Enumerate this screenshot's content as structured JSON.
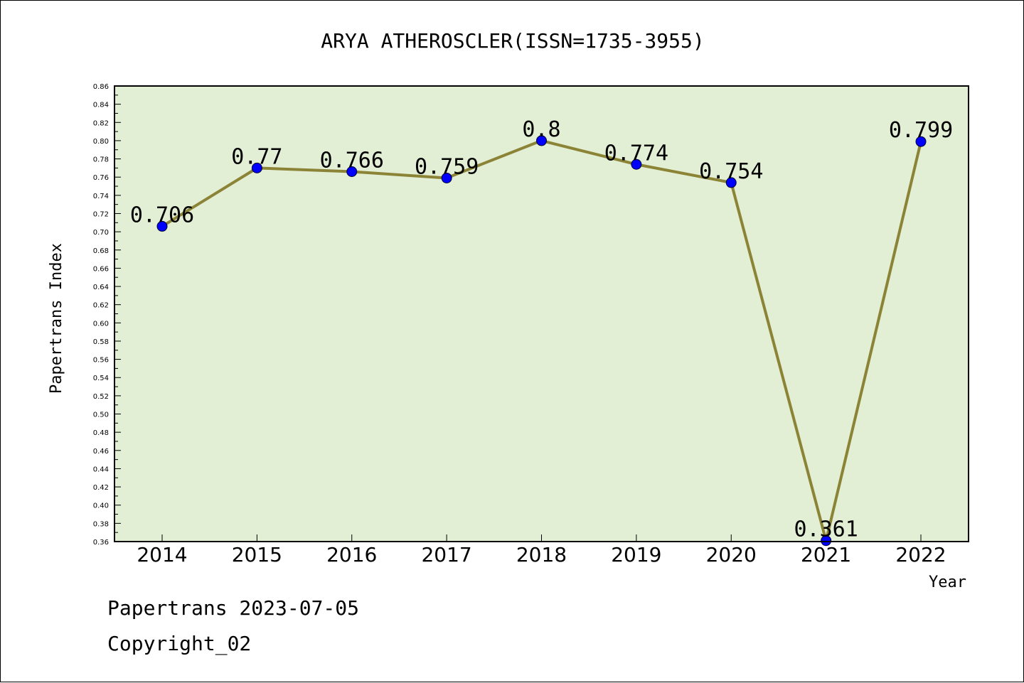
{
  "chart_data": {
    "type": "line",
    "title": "ARYA ATHEROSCLER(ISSN=1735-3955)",
    "xlabel": "Year",
    "ylabel": "Papertrans Index",
    "categories": [
      "2014",
      "2015",
      "2016",
      "2017",
      "2018",
      "2019",
      "2020",
      "2021",
      "2022"
    ],
    "values": [
      0.706,
      0.77,
      0.766,
      0.759,
      0.8,
      0.774,
      0.754,
      0.361,
      0.799
    ],
    "data_labels": [
      "0.706",
      "0.77",
      "0.766",
      "0.759",
      "0.8",
      "0.774",
      "0.754",
      "0.361",
      "0.799"
    ],
    "ylim": [
      0.36,
      0.86
    ],
    "ytick_step": 0.02,
    "yticks": [
      "0.36",
      "0.38",
      "0.40",
      "0.42",
      "0.44",
      "0.46",
      "0.48",
      "0.50",
      "0.52",
      "0.54",
      "0.56",
      "0.58",
      "0.60",
      "0.62",
      "0.64",
      "0.66",
      "0.68",
      "0.70",
      "0.72",
      "0.74",
      "0.76",
      "0.78",
      "0.80",
      "0.82",
      "0.84",
      "0.86"
    ],
    "grid": false,
    "colors": {
      "plot_background": "#e2efd5",
      "line": "#8b8336",
      "marker": "#0000ff"
    }
  },
  "footer": {
    "line1": "Papertrans 2023-07-05",
    "line2": "Copyright_02"
  }
}
